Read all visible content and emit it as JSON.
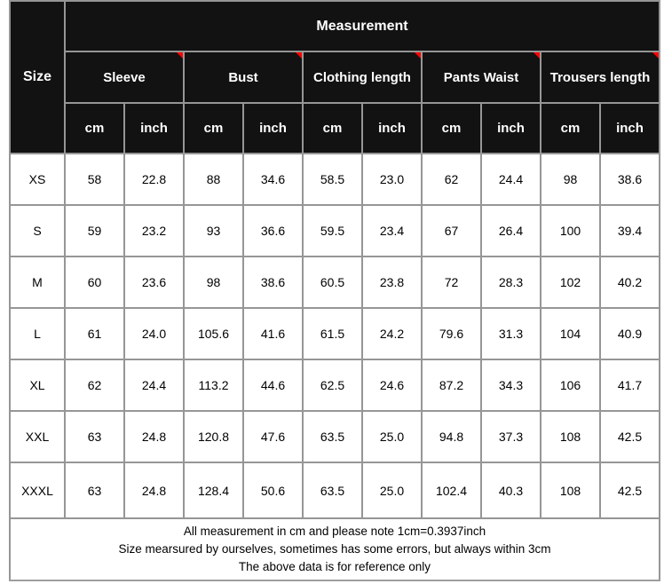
{
  "colors": {
    "header_bg": "#121212",
    "header_text": "#ffffff",
    "grid_line": "#969696",
    "corner_marker": "#ff0000",
    "body_text": "#000000",
    "body_bg": "#ffffff"
  },
  "chart_data": {
    "type": "table",
    "title": "Measurement",
    "row_header": "Size",
    "groups": [
      "Sleeve",
      "Bust",
      "Clothing length",
      "Pants Waist",
      "Trousers length"
    ],
    "unit_labels": [
      "cm",
      "inch"
    ],
    "rows": [
      {
        "size": "XS",
        "values": [
          "58",
          "22.8",
          "88",
          "34.6",
          "58.5",
          "23.0",
          "62",
          "24.4",
          "98",
          "38.6"
        ]
      },
      {
        "size": "S",
        "values": [
          "59",
          "23.2",
          "93",
          "36.6",
          "59.5",
          "23.4",
          "67",
          "26.4",
          "100",
          "39.4"
        ]
      },
      {
        "size": "M",
        "values": [
          "60",
          "23.6",
          "98",
          "38.6",
          "60.5",
          "23.8",
          "72",
          "28.3",
          "102",
          "40.2"
        ]
      },
      {
        "size": "L",
        "values": [
          "61",
          "24.0",
          "105.6",
          "41.6",
          "61.5",
          "24.2",
          "79.6",
          "31.3",
          "104",
          "40.9"
        ]
      },
      {
        "size": "XL",
        "values": [
          "62",
          "24.4",
          "113.2",
          "44.6",
          "62.5",
          "24.6",
          "87.2",
          "34.3",
          "106",
          "41.7"
        ]
      },
      {
        "size": "XXL",
        "values": [
          "63",
          "24.8",
          "120.8",
          "47.6",
          "63.5",
          "25.0",
          "94.8",
          "37.3",
          "108",
          "42.5"
        ]
      },
      {
        "size": "XXXL",
        "values": [
          "63",
          "24.8",
          "128.4",
          "50.6",
          "63.5",
          "25.0",
          "102.4",
          "40.3",
          "108",
          "42.5"
        ]
      }
    ],
    "footer_lines": [
      "All measurement in cm and please note 1cm=0.3937inch",
      "Size mearsured by ourselves, sometimes has some errors, but always within 3cm",
      "The above data is for reference only"
    ]
  }
}
